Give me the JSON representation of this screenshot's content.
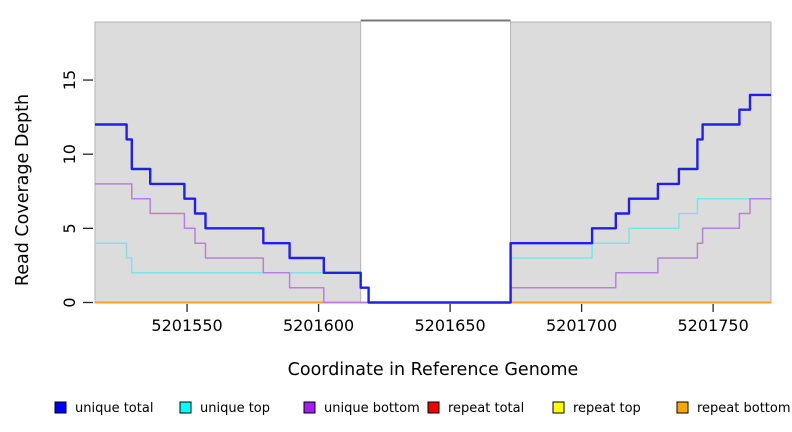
{
  "chart_data": {
    "type": "line",
    "line_style": "step-post",
    "title": "",
    "xlabel": "Coordinate in Reference Genome",
    "ylabel": "Read Coverage Depth",
    "xlim": [
      5201515,
      5201772
    ],
    "ylim": [
      0,
      19
    ],
    "x_ticks": [
      5201550,
      5201600,
      5201650,
      5201700,
      5201750
    ],
    "y_ticks": [
      0,
      5,
      10,
      15
    ],
    "grid": false,
    "legend_position": "bottom",
    "plot_bg": "#ffffff",
    "shaded_regions": {
      "color": "#dcdcdc",
      "border_color": "#b4b4b4",
      "ranges": [
        [
          5201515,
          5201616
        ],
        [
          5201673,
          5201772
        ]
      ]
    },
    "uncovered_gap": {
      "range": [
        5201616,
        5201673
      ],
      "top_border_color": "#787878"
    },
    "series": [
      {
        "name": "repeat total",
        "plot_color": "#e00000",
        "width": 1.4,
        "steps": [
          [
            5201515,
            0
          ]
        ]
      },
      {
        "name": "repeat top",
        "plot_color": "#ffff00",
        "width": 1.4,
        "steps": [
          [
            5201515,
            0
          ]
        ]
      },
      {
        "name": "repeat bottom",
        "plot_color": "#ffa126",
        "width": 2,
        "steps": [
          [
            5201515,
            0
          ]
        ]
      },
      {
        "name": "unique top",
        "plot_color": "#7be4e8",
        "width": 1.5,
        "steps": [
          [
            5201515,
            4
          ],
          [
            5201527,
            3
          ],
          [
            5201529,
            2
          ],
          [
            5201616,
            1
          ],
          [
            5201619,
            0
          ],
          [
            5201673,
            3
          ],
          [
            5201704,
            4
          ],
          [
            5201718,
            5
          ],
          [
            5201737,
            6
          ],
          [
            5201744,
            7
          ]
        ]
      },
      {
        "name": "unique bottom",
        "plot_color": "#b77fe0",
        "width": 1.5,
        "steps": [
          [
            5201515,
            8
          ],
          [
            5201529,
            7
          ],
          [
            5201536,
            6
          ],
          [
            5201549,
            5
          ],
          [
            5201553,
            4
          ],
          [
            5201557,
            3
          ],
          [
            5201579,
            2
          ],
          [
            5201589,
            1
          ],
          [
            5201602,
            0
          ],
          [
            5201673,
            1
          ],
          [
            5201713,
            2
          ],
          [
            5201729,
            3
          ],
          [
            5201744,
            4
          ],
          [
            5201746,
            5
          ],
          [
            5201760,
            6
          ],
          [
            5201764,
            7
          ]
        ]
      },
      {
        "name": "unique total",
        "plot_color": "#2020e8",
        "width": 2.4,
        "steps": [
          [
            5201515,
            12
          ],
          [
            5201527,
            11
          ],
          [
            5201529,
            9
          ],
          [
            5201536,
            8
          ],
          [
            5201549,
            7
          ],
          [
            5201553,
            6
          ],
          [
            5201557,
            5
          ],
          [
            5201579,
            4
          ],
          [
            5201589,
            3
          ],
          [
            5201602,
            2
          ],
          [
            5201616,
            1
          ],
          [
            5201619,
            0
          ],
          [
            5201673,
            4
          ],
          [
            5201704,
            5
          ],
          [
            5201713,
            6
          ],
          [
            5201718,
            7
          ],
          [
            5201729,
            8
          ],
          [
            5201737,
            9
          ],
          [
            5201744,
            11
          ],
          [
            5201746,
            12
          ],
          [
            5201760,
            13
          ],
          [
            5201764,
            14
          ]
        ]
      }
    ],
    "legend": [
      {
        "label": "unique total",
        "color": "#0000ee"
      },
      {
        "label": "unique top",
        "color": "#00ffff"
      },
      {
        "label": "unique bottom",
        "color": "#a020f0"
      },
      {
        "label": "repeat total",
        "color": "#ee0000"
      },
      {
        "label": "repeat top",
        "color": "#ffff00"
      },
      {
        "label": "repeat bottom",
        "color": "#ffa500"
      }
    ]
  }
}
